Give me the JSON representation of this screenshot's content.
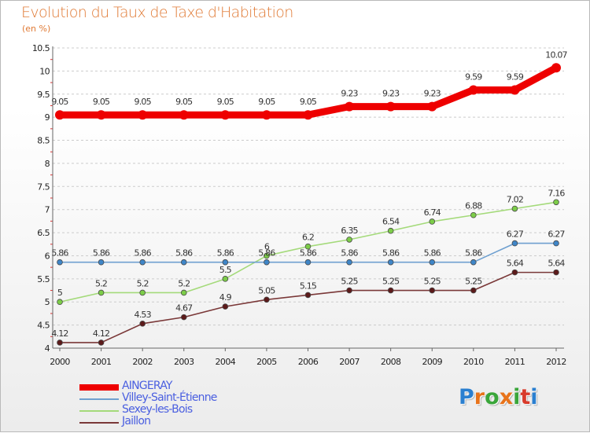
{
  "title": "Evolution du Taux de Taxe d'Habitation",
  "subtitle": "(en %)",
  "colors": {
    "title": "#e07a35",
    "legend_text": "#4a5fe0",
    "grid": "#cccccc",
    "axis": "#666666"
  },
  "logo": {
    "text": "Proxiti",
    "colors": [
      "#2a7fd0",
      "#e8731a",
      "#3aa63a",
      "#e8731a",
      "#3aa63a",
      "#d83a2a",
      "#2a7fd0"
    ]
  },
  "chart_data": {
    "type": "line",
    "title": "Evolution du Taux de Taxe d'Habitation",
    "subtitle": "(en %)",
    "xlabel": "",
    "ylabel": "",
    "x": [
      "2000",
      "2001",
      "2002",
      "2003",
      "2004",
      "2005",
      "2006",
      "2007",
      "2008",
      "2009",
      "2010",
      "2011",
      "2012"
    ],
    "ylim": [
      4,
      10.5
    ],
    "yticks": [
      "4",
      "4.5",
      "5",
      "5.5",
      "6",
      "6.5",
      "7",
      "7.5",
      "8",
      "8.5",
      "9",
      "9.5",
      "10",
      "10.5"
    ],
    "grid": "horizontal dashed",
    "legend_position": "bottom-left",
    "series": [
      {
        "name": "AINGERAY",
        "color": "#ee0000",
        "dot": "#ee0000",
        "style": "thick",
        "values": [
          9.05,
          9.05,
          9.05,
          9.05,
          9.05,
          9.05,
          9.05,
          9.23,
          9.23,
          9.23,
          9.59,
          9.59,
          10.07
        ],
        "labels": [
          "9.05",
          "9.05",
          "9.05",
          "9.05",
          "9.05",
          "9.05",
          "9.05",
          "9.23",
          "9.23",
          "9.23",
          "9.59",
          "9.59",
          "10.07"
        ]
      },
      {
        "name": "Villey-Saint-Étienne",
        "color": "#6fa0d0",
        "dot": "#3f86c8",
        "style": "thin",
        "values": [
          5.86,
          5.86,
          5.86,
          5.86,
          5.86,
          5.86,
          5.86,
          5.86,
          5.86,
          5.86,
          5.86,
          6.27,
          6.27
        ],
        "labels": [
          "5.86",
          "5.86",
          "5.86",
          "5.86",
          "5.86",
          "5.86",
          "5.86",
          "5.86",
          "5.86",
          "5.86",
          "5.86",
          "6.27",
          "6.27"
        ]
      },
      {
        "name": "Sexey-les-Bois",
        "color": "#a4da7a",
        "dot": "#7ccd48",
        "style": "thin",
        "values": [
          5,
          5.2,
          5.2,
          5.2,
          5.5,
          6,
          6.2,
          6.35,
          6.54,
          6.74,
          6.88,
          7.02,
          7.16
        ],
        "labels": [
          "5",
          "5.2",
          "5.2",
          "5.2",
          "5.5",
          "6",
          "6.2",
          "6.35",
          "6.54",
          "6.74",
          "6.88",
          "7.02",
          "7.16"
        ]
      },
      {
        "name": "Jaillon",
        "color": "#7a3838",
        "dot": "#5c1a1a",
        "style": "thin",
        "values": [
          4.12,
          4.12,
          4.53,
          4.67,
          4.9,
          5.05,
          5.15,
          5.25,
          5.25,
          5.25,
          5.25,
          5.64,
          5.64
        ],
        "labels": [
          "4.12",
          "4.12",
          "4.53",
          "4.67",
          "4.9",
          "5.05",
          "5.15",
          "5.25",
          "5.25",
          "5.25",
          "5.25",
          "5.64",
          "5.64"
        ]
      }
    ]
  }
}
